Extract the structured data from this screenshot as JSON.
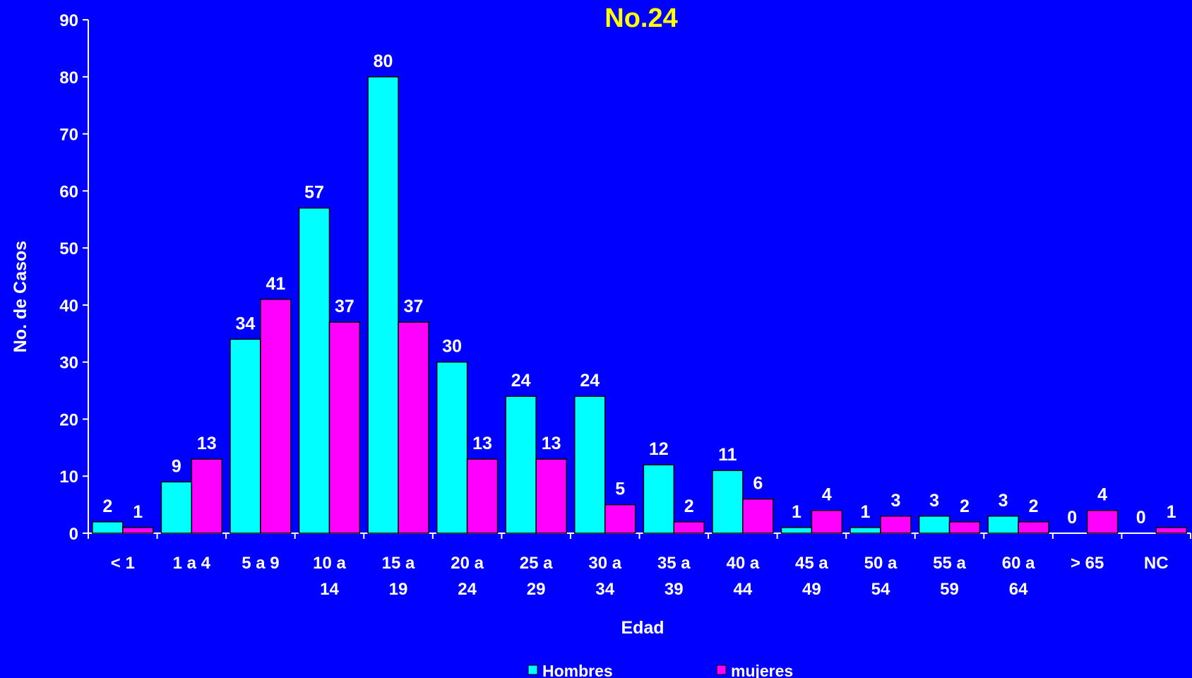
{
  "chart_data": {
    "type": "bar",
    "title": "No.24",
    "xlabel": "Edad",
    "ylabel": "No. de Casos",
    "ylim": [
      0,
      90
    ],
    "yticks": [
      0,
      10,
      20,
      30,
      40,
      50,
      60,
      70,
      80,
      90
    ],
    "grid": false,
    "legend_position": "bottom",
    "categories": [
      [
        "< 1"
      ],
      [
        "1 a 4"
      ],
      [
        "5 a 9"
      ],
      [
        "10 a",
        "14"
      ],
      [
        "15 a",
        "19"
      ],
      [
        "20 a",
        "24"
      ],
      [
        "25 a",
        "29"
      ],
      [
        "30 a",
        "34"
      ],
      [
        "35 a",
        "39"
      ],
      [
        "40 a",
        "44"
      ],
      [
        "45 a",
        "49"
      ],
      [
        "50 a",
        "54"
      ],
      [
        "55 a",
        "59"
      ],
      [
        "60 a",
        "64"
      ],
      [
        "> 65"
      ],
      [
        "NC"
      ]
    ],
    "series": [
      {
        "name": "Hombres",
        "color": "#00FFFF",
        "values": [
          2,
          9,
          34,
          57,
          80,
          30,
          24,
          24,
          12,
          11,
          1,
          1,
          3,
          3,
          0,
          0
        ]
      },
      {
        "name": "mujeres",
        "color": "#FF00FF",
        "values": [
          1,
          13,
          41,
          37,
          37,
          13,
          13,
          5,
          2,
          6,
          4,
          3,
          2,
          2,
          4,
          1
        ]
      }
    ],
    "background_color": "#0000FF",
    "title_color": "#FFFF00",
    "text_color": "#FFFFFF"
  }
}
